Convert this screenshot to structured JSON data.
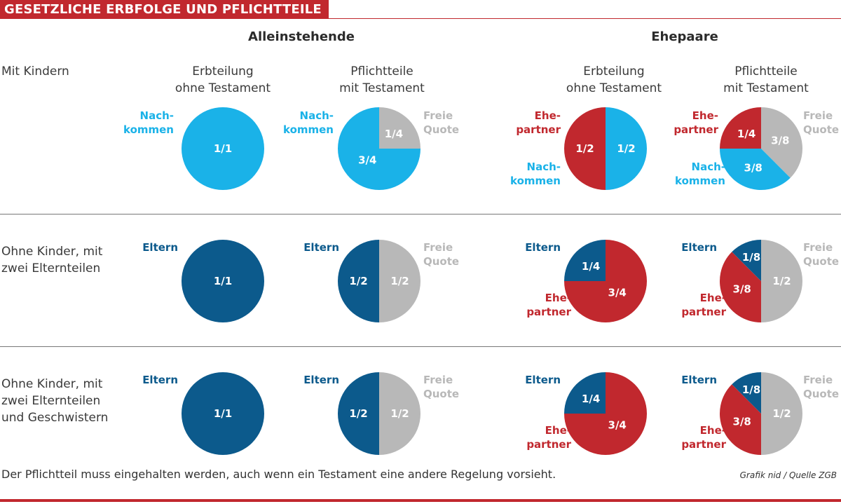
{
  "header": {
    "title": "GESETZLICHE ERBFOLGE UND PFLICHTTEILE"
  },
  "groups": [
    "Alleinstehende",
    "Ehepaare"
  ],
  "columns": [
    {
      "lines": [
        "Erbteilung",
        "ohne Testament"
      ]
    },
    {
      "lines": [
        "Pflichtteile",
        "mit Testament"
      ]
    },
    {
      "lines": [
        "Erbteilung",
        "ohne Testament"
      ]
    },
    {
      "lines": [
        "Pflichtteile",
        "mit Testament"
      ]
    }
  ],
  "rows": [
    {
      "lines": [
        "Mit Kindern"
      ]
    },
    {
      "lines": [
        "Ohne Kinder, mit",
        "zwei Elternteilen"
      ]
    },
    {
      "lines": [
        "Ohne Kinder, mit",
        "zwei Elternteilen",
        "und Geschwistern"
      ]
    }
  ],
  "footer": {
    "note": "Der Pflichtteil muss eingehalten werden, auch wenn ein Testament eine andere Regelung vorsieht.",
    "source": "Grafik nid / Quelle ZGB"
  },
  "colors": {
    "nachkommen": "#1ab2e8",
    "eltern": "#0c5a8c",
    "ehepartner": "#c1282e",
    "freie_quote": "#b8b8b8",
    "title_bar": "#c1282e"
  },
  "chart_data": [
    {
      "type": "pie",
      "row": 0,
      "col": 0,
      "slices": [
        {
          "name": "Nachkommen",
          "label": "Nach- kommen",
          "value": 1,
          "display": "1/1",
          "color": "#1ab2e8"
        }
      ]
    },
    {
      "type": "pie",
      "row": 0,
      "col": 1,
      "slices": [
        {
          "name": "Freie Quote",
          "label": "Freie Quote",
          "value": 0.25,
          "display": "1/4",
          "color": "#b8b8b8"
        },
        {
          "name": "Nachkommen",
          "label": "Nach- kommen",
          "value": 0.75,
          "display": "3/4",
          "color": "#1ab2e8"
        }
      ]
    },
    {
      "type": "pie",
      "row": 0,
      "col": 2,
      "slices": [
        {
          "name": "Nachkommen",
          "label": "Nach- kommen",
          "value": 0.5,
          "display": "1/2",
          "color": "#1ab2e8"
        },
        {
          "name": "Ehepartner",
          "label": "Ehe- partner",
          "value": 0.5,
          "display": "1/2",
          "color": "#c1282e"
        }
      ]
    },
    {
      "type": "pie",
      "row": 0,
      "col": 3,
      "slices": [
        {
          "name": "Freie Quote",
          "label": "Freie Quote",
          "value": 0.375,
          "display": "3/8",
          "color": "#b8b8b8"
        },
        {
          "name": "Nachkommen",
          "label": "Nach- kommen",
          "value": 0.375,
          "display": "3/8",
          "color": "#1ab2e8"
        },
        {
          "name": "Ehepartner",
          "label": "Ehe- partner",
          "value": 0.25,
          "display": "1/4",
          "color": "#c1282e"
        }
      ]
    },
    {
      "type": "pie",
      "row": 1,
      "col": 0,
      "slices": [
        {
          "name": "Eltern",
          "label": "Eltern",
          "value": 1,
          "display": "1/1",
          "color": "#0c5a8c"
        }
      ]
    },
    {
      "type": "pie",
      "row": 1,
      "col": 1,
      "slices": [
        {
          "name": "Freie Quote",
          "label": "Freie Quote",
          "value": 0.5,
          "display": "1/2",
          "color": "#b8b8b8"
        },
        {
          "name": "Eltern",
          "label": "Eltern",
          "value": 0.5,
          "display": "1/2",
          "color": "#0c5a8c"
        }
      ]
    },
    {
      "type": "pie",
      "row": 1,
      "col": 2,
      "slices": [
        {
          "name": "Ehepartner",
          "label": "Ehe- partner",
          "value": 0.75,
          "display": "3/4",
          "color": "#c1282e"
        },
        {
          "name": "Eltern",
          "label": "Eltern",
          "value": 0.25,
          "display": "1/4",
          "color": "#0c5a8c"
        }
      ]
    },
    {
      "type": "pie",
      "row": 1,
      "col": 3,
      "slices": [
        {
          "name": "Freie Quote",
          "label": "Freie Quote",
          "value": 0.5,
          "display": "1/2",
          "color": "#b8b8b8"
        },
        {
          "name": "Ehepartner",
          "label": "Ehe- partner",
          "value": 0.375,
          "display": "3/8",
          "color": "#c1282e"
        },
        {
          "name": "Eltern",
          "label": "Eltern",
          "value": 0.125,
          "display": "1/8",
          "color": "#0c5a8c"
        }
      ]
    },
    {
      "type": "pie",
      "row": 2,
      "col": 0,
      "slices": [
        {
          "name": "Eltern",
          "label": "Eltern",
          "value": 1,
          "display": "1/1",
          "color": "#0c5a8c"
        }
      ]
    },
    {
      "type": "pie",
      "row": 2,
      "col": 1,
      "slices": [
        {
          "name": "Freie Quote",
          "label": "Freie Quote",
          "value": 0.5,
          "display": "1/2",
          "color": "#b8b8b8"
        },
        {
          "name": "Eltern",
          "label": "Eltern",
          "value": 0.5,
          "display": "1/2",
          "color": "#0c5a8c"
        }
      ]
    },
    {
      "type": "pie",
      "row": 2,
      "col": 2,
      "slices": [
        {
          "name": "Ehepartner",
          "label": "Ehe- partner",
          "value": 0.75,
          "display": "3/4",
          "color": "#c1282e"
        },
        {
          "name": "Eltern",
          "label": "Eltern",
          "value": 0.25,
          "display": "1/4",
          "color": "#0c5a8c"
        }
      ]
    },
    {
      "type": "pie",
      "row": 2,
      "col": 3,
      "slices": [
        {
          "name": "Freie Quote",
          "label": "Freie Quote",
          "value": 0.5,
          "display": "1/2",
          "color": "#b8b8b8"
        },
        {
          "name": "Ehepartner",
          "label": "Ehe- partner",
          "value": 0.375,
          "display": "3/8",
          "color": "#c1282e"
        },
        {
          "name": "Eltern",
          "label": "Eltern",
          "value": 0.125,
          "display": "1/8",
          "color": "#0c5a8c"
        }
      ]
    }
  ]
}
